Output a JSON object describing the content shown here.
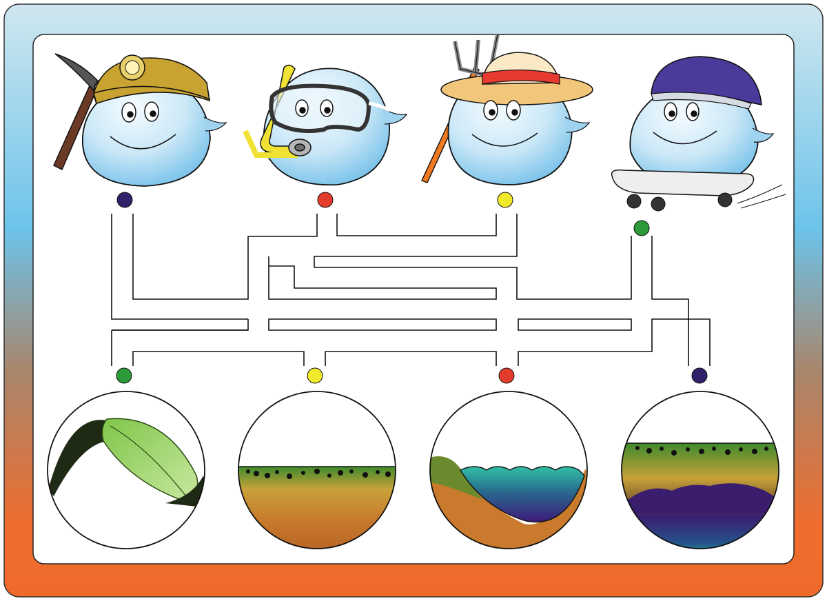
{
  "colors": {
    "frame_top": "#cfe7ef",
    "frame_mid_blue": "#6cc3ea",
    "frame_mid_brown": "#a8866c",
    "frame_bottom": "#ef6d2e",
    "panel": "#ffffff",
    "maze_line": "#111111",
    "droplet_light": "#e7f4fb",
    "droplet_dark": "#7ec4ea",
    "dot_purple": "#33206a",
    "dot_red": "#e33b2c",
    "dot_yellow": "#f1ea2a",
    "dot_green": "#2d9a3a"
  },
  "characters": [
    {
      "name": "miner",
      "icon": "pickaxe-icon",
      "hat": "hard-hat-icon",
      "dot": "purple"
    },
    {
      "name": "snorkeler",
      "icon": "snorkel-icon",
      "hat": "diving-mask-icon",
      "dot": "red"
    },
    {
      "name": "farmer",
      "icon": "pitchfork-icon",
      "hat": "straw-hat-icon",
      "dot": "yellow"
    },
    {
      "name": "skateboarder",
      "icon": "skateboard-icon",
      "hat": "helmet-icon",
      "dot": "green"
    }
  ],
  "habitats": [
    {
      "name": "leaf",
      "icon": "leaf-icon",
      "dot": "green"
    },
    {
      "name": "soil-surface",
      "icon": "soil-icon",
      "dot": "yellow"
    },
    {
      "name": "surface-water",
      "icon": "lake-icon",
      "dot": "red"
    },
    {
      "name": "groundwater",
      "icon": "aquifer-icon",
      "dot": "purple"
    }
  ]
}
